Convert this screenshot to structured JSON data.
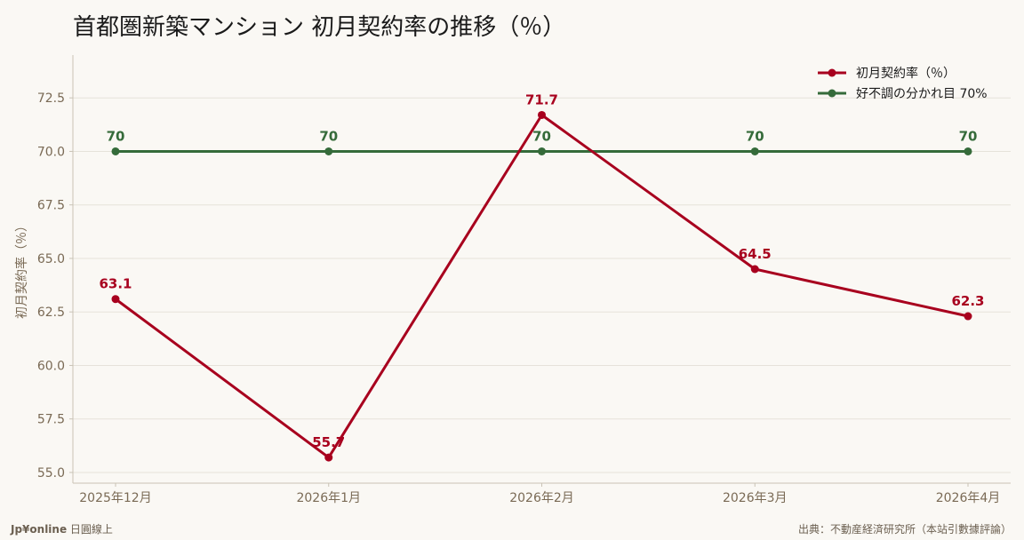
{
  "title": "首都圏新築マンション 初月契約率の推移（％）",
  "footer": {
    "brand_bold": "Jp¥online",
    "brand_rest": " 日圓線上",
    "source": "出典：不動産経済研究所（本站引數據評論）"
  },
  "chart_data": {
    "type": "line",
    "categories": [
      "2025年12月",
      "2026年1月",
      "2026年2月",
      "2026年3月",
      "2026年4月"
    ],
    "series": [
      {
        "name": "初月契約率（％）",
        "values": [
          63.1,
          55.7,
          71.7,
          64.5,
          62.3
        ],
        "color": "#a8001e",
        "labels": [
          "63.1",
          "55.7",
          "71.7",
          "64.5",
          "62.3"
        ]
      },
      {
        "name": "好不調の分かれ目 70%",
        "values": [
          70,
          70,
          70,
          70,
          70
        ],
        "color": "#356b3a",
        "labels": [
          "70",
          "70",
          "70",
          "70",
          "70"
        ]
      }
    ],
    "ylabel": "初月契約率（％）",
    "ylim": [
      54.5,
      74.5
    ],
    "yticks": [
      55.0,
      57.5,
      60.0,
      62.5,
      65.0,
      67.5,
      70.0,
      72.5
    ],
    "grid": true,
    "legend": "top-right",
    "colors": {
      "axis_text": "#7a6a55",
      "grid": "#e6e2da",
      "axis": "#c9c2b5"
    }
  }
}
